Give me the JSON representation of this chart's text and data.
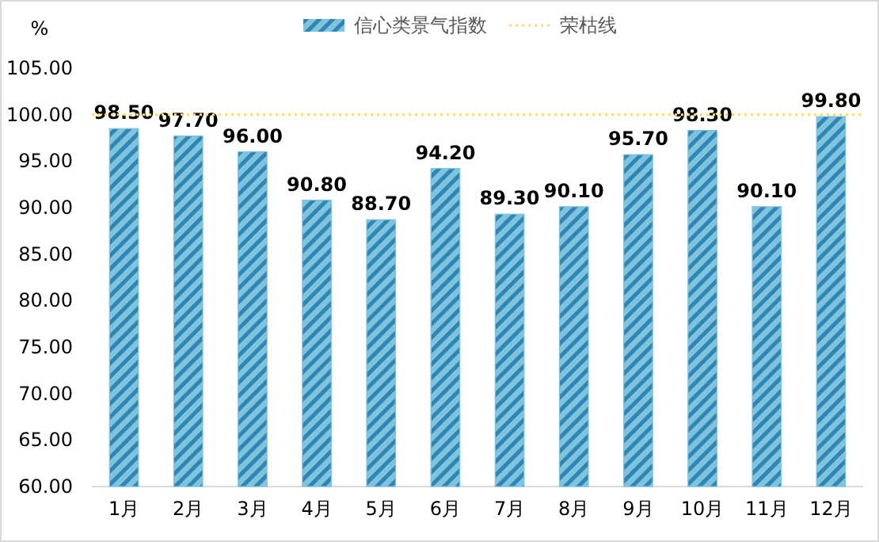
{
  "chart_data": {
    "type": "bar",
    "ylabel": "%",
    "categories": [
      "1月",
      "2月",
      "3月",
      "4月",
      "5月",
      "6月",
      "7月",
      "8月",
      "9月",
      "10月",
      "11月",
      "12月"
    ],
    "series": [
      {
        "name": "信心类景气指数",
        "color": "#7fc3df",
        "values": [
          98.5,
          97.7,
          96.0,
          90.8,
          88.7,
          94.2,
          89.3,
          90.1,
          95.7,
          98.3,
          90.1,
          99.8
        ],
        "value_labels": [
          "98.50",
          "97.70",
          "96.00",
          "90.80",
          "88.70",
          "94.20",
          "89.30",
          "90.10",
          "95.70",
          "98.30",
          "90.10",
          "99.80"
        ]
      }
    ],
    "ylim": [
      60,
      105
    ],
    "yticks": [
      {
        "value": 60,
        "label": "60.00"
      },
      {
        "value": 65,
        "label": "65.00"
      },
      {
        "value": 70,
        "label": "70.00"
      },
      {
        "value": 75,
        "label": "75.00"
      },
      {
        "value": 80,
        "label": "80.00"
      },
      {
        "value": 85,
        "label": "85.00"
      },
      {
        "value": 90,
        "label": "90.00"
      },
      {
        "value": 95,
        "label": "95.00"
      },
      {
        "value": 100,
        "label": "100.00"
      },
      {
        "value": 105,
        "label": "105.00"
      }
    ],
    "ref_lines": [
      {
        "axis": "y",
        "value": 100,
        "label": "荣枯线",
        "color": "#ffd966",
        "line_style": "dotted"
      }
    ],
    "legend": "top",
    "grid": false
  }
}
